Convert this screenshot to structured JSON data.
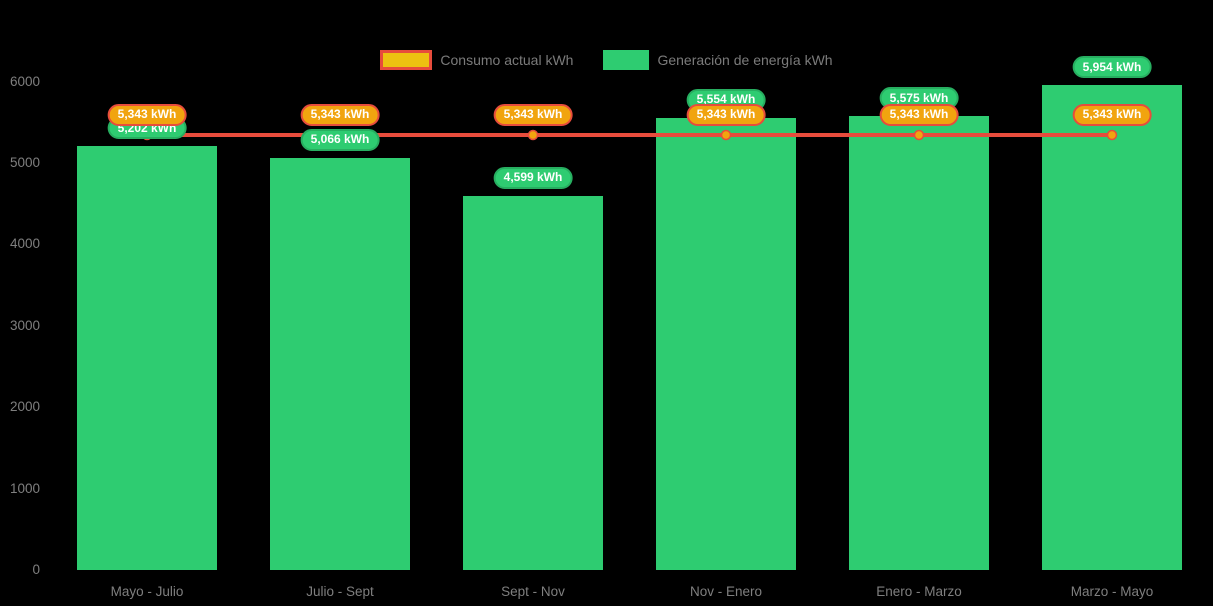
{
  "legend": {
    "items": [
      {
        "label": "Consumo actual kWh",
        "series_type": "line"
      },
      {
        "label": "Generación de energía kWh",
        "series_type": "bar"
      }
    ]
  },
  "colors": {
    "background": "#000000",
    "bar_green": "#2ecc71",
    "badge_green_border": "#27ae60",
    "line_red": "#e74c3c",
    "point_amber": "#f1a40f",
    "legend_amber": "#edc111",
    "axis_text": "#7f7f7f",
    "legend_text": "#7b7b7b",
    "badge_text": "#ffffff"
  },
  "chart_data": {
    "type": "bar",
    "subtype": "bar-line-combo",
    "categories": [
      "Mayo - Julio",
      "Julio - Sept",
      "Sept - Nov",
      "Nov - Enero",
      "Enero - Marzo",
      "Marzo - Mayo"
    ],
    "series": [
      {
        "name": "Generación de energía kWh",
        "type": "bar",
        "color": "#2ecc71",
        "values": [
          5202,
          5066,
          4599,
          5554,
          5575,
          5954
        ],
        "labels": [
          "5,202 kWh",
          "5,066 kWh",
          "4,599 kWh",
          "5,554 kWh",
          "5,575 kWh",
          "5,954 kWh"
        ]
      },
      {
        "name": "Consumo actual kWh",
        "type": "line",
        "color": "#e74c3c",
        "values": [
          5343,
          5343,
          5343,
          5343,
          5343,
          5343
        ],
        "labels": [
          "5,343 kWh",
          "5,343 kWh",
          "5,343 kWh",
          "5,343 kWh",
          "5,343 kWh",
          "5,343 kWh"
        ]
      }
    ],
    "ylim": [
      0,
      6000
    ],
    "yticks": [
      0,
      1000,
      2000,
      3000,
      4000,
      5000,
      6000
    ],
    "ytick_labels": [
      "0",
      "1000",
      "2000",
      "3000",
      "4000",
      "5000",
      "6000"
    ],
    "grid": false,
    "legend_position": "top",
    "background": "#000000"
  }
}
